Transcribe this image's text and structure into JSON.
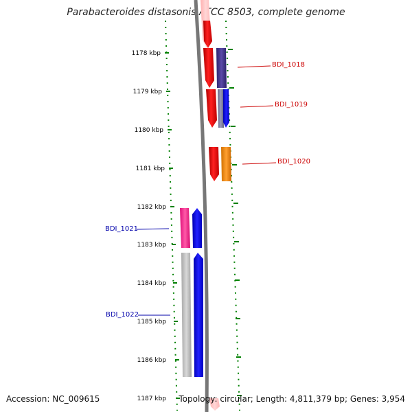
{
  "title": "Parabacteroides distasonis ATCC 8503, complete genome",
  "footer": {
    "accession": "Accession: NC_009615",
    "summary": "Topology: circular; Length: 4,811,379 bp; Genes: 3,954"
  },
  "colors": {
    "backbone": "#777777",
    "tick": "#008000",
    "kbp_label": "#000000",
    "upper_gene_label": "#cc0000",
    "lower_gene_label": "#0000aa"
  },
  "kbp_labels": [
    "1178 kbp",
    "1179 kbp",
    "1180 kbp",
    "1181 kbp",
    "1182 kbp",
    "1183 kbp",
    "1184 kbp",
    "1185 kbp",
    "1186 kbp",
    "1187 kbp"
  ],
  "gene_labels": [
    {
      "text": "BDI_1018",
      "strand": "plus"
    },
    {
      "text": "BDI_1019",
      "strand": "plus"
    },
    {
      "text": "BDI_1020",
      "strand": "plus"
    },
    {
      "text": "BDI_1021",
      "strand": "minus"
    },
    {
      "text": "BDI_1022",
      "strand": "minus"
    }
  ]
}
